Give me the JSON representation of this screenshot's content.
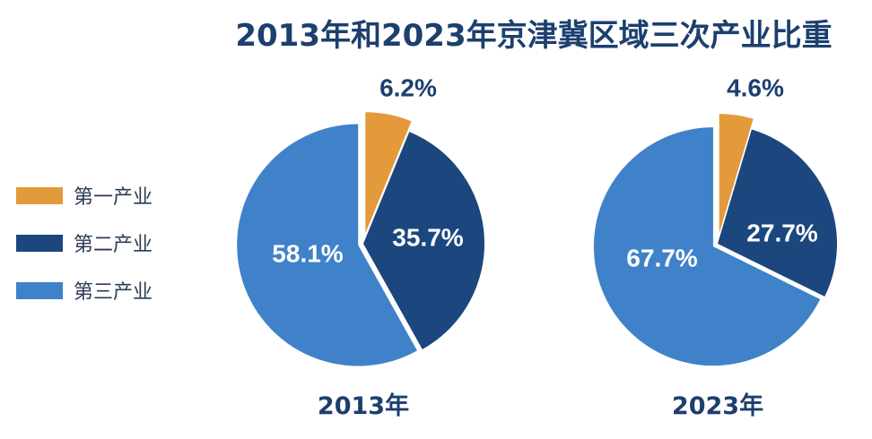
{
  "title": "2013年和2023年京津冀区域三次产业比重",
  "colors": {
    "primary": "#e39a3b",
    "secondary": "#1c467e",
    "tertiary": "#3f82c9",
    "label_dark": "#1c3f6e",
    "label_light": "#ffffff"
  },
  "legend": [
    {
      "label": "第一产业",
      "color": "#e39a3b"
    },
    {
      "label": "第二产业",
      "color": "#1c467e"
    },
    {
      "label": "第三产业",
      "color": "#3f82c9"
    }
  ],
  "chart_data": [
    {
      "type": "pie",
      "title": "2013年",
      "categories": [
        "第一产业",
        "第二产业",
        "第三产业"
      ],
      "values": [
        6.2,
        35.7,
        58.1
      ],
      "labels": [
        "6.2%",
        "35.7%",
        "58.1%"
      ]
    },
    {
      "type": "pie",
      "title": "2023年",
      "categories": [
        "第一产业",
        "第二产业",
        "第三产业"
      ],
      "values": [
        4.6,
        27.7,
        67.7
      ],
      "labels": [
        "4.6%",
        "27.7%",
        "67.7%"
      ]
    }
  ]
}
